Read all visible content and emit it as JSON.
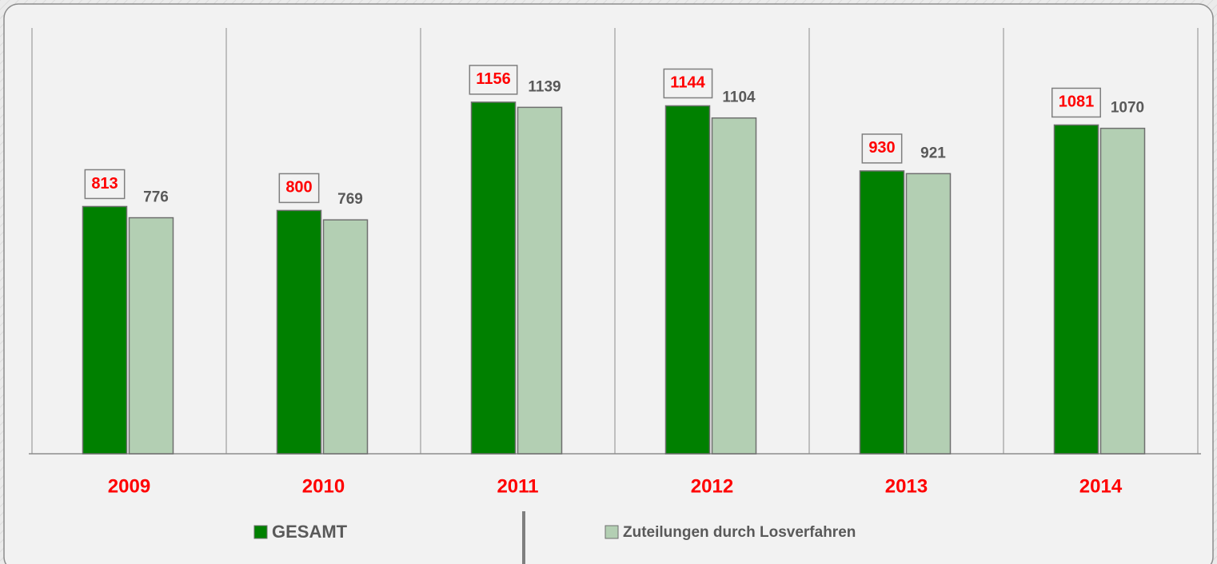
{
  "chart_data": {
    "type": "bar",
    "categories": [
      "2009",
      "2010",
      "2011",
      "2012",
      "2013",
      "2014"
    ],
    "series": [
      {
        "name": "GESAMT",
        "color": "#008000",
        "values": [
          813,
          800,
          1156,
          1144,
          930,
          1081
        ]
      },
      {
        "name": "Zuteilungen durch Losverfahren",
        "color": "#b3cfb3",
        "values": [
          776,
          769,
          1139,
          1104,
          921,
          1070
        ]
      }
    ],
    "ylim": [
      0,
      1400
    ]
  }
}
